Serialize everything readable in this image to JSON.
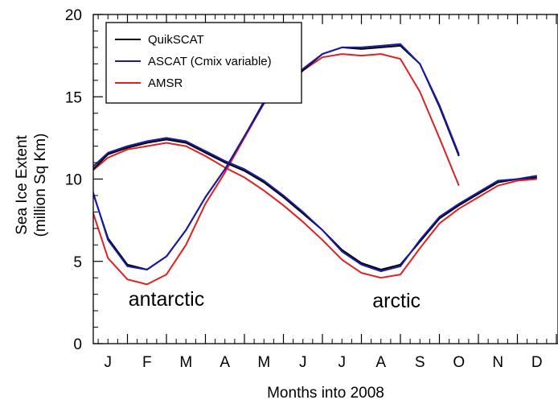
{
  "chart_data": {
    "type": "line",
    "title": "",
    "xlabel": "Months into 2008",
    "ylabel_lines": [
      "Sea Ice Extent",
      "(million Sq Km)"
    ],
    "ylim": [
      0,
      20
    ],
    "yticks": [
      0,
      5,
      10,
      15,
      20
    ],
    "xlim": [
      0,
      12
    ],
    "months": [
      "J",
      "F",
      "M",
      "A",
      "M",
      "J",
      "J",
      "A",
      "S",
      "O",
      "N",
      "D"
    ],
    "legend_position": "top-left",
    "grid": false,
    "annotations": [
      {
        "text": "antarctic",
        "x": 2.0,
        "y": 2.3
      },
      {
        "text": "arctic",
        "x": 7.9,
        "y": 2.2
      }
    ],
    "x": [
      0.0,
      0.5,
      1.0,
      1.5,
      2.0,
      2.5,
      3.0,
      3.5,
      4.0,
      4.5,
      5.0,
      5.5,
      6.0,
      6.5,
      7.0,
      7.5,
      8.0,
      8.5,
      9.0,
      9.5,
      10.0,
      10.5,
      11.0,
      11.5,
      12.0
    ],
    "series": [
      {
        "name": "QuikSCAT",
        "color": "#000000",
        "group": "antarctic",
        "values": [
          10.0,
          6.4,
          4.8,
          4.5,
          5.3,
          6.9,
          8.9,
          10.6,
          12.6,
          14.7,
          15.6,
          16.6,
          17.6,
          18.0,
          17.9,
          18.0,
          18.1,
          17.0,
          14.4,
          11.4,
          null,
          null,
          null,
          null,
          null
        ]
      },
      {
        "name": "",
        "color": "#000000",
        "group": "arctic",
        "values": [
          10.3,
          11.5,
          11.9,
          12.2,
          12.4,
          12.2,
          11.6,
          11.0,
          10.5,
          9.8,
          8.9,
          7.9,
          6.9,
          5.7,
          4.9,
          4.5,
          4.8,
          6.2,
          7.6,
          8.4,
          9.1,
          9.8,
          10.0,
          10.1,
          null
        ]
      },
      {
        "name": "ASCAT (Cmix variable)",
        "color": "#1a1aaa",
        "group": "antarctic",
        "values": [
          10.1,
          6.3,
          4.7,
          4.5,
          5.3,
          6.9,
          8.9,
          10.6,
          12.6,
          14.6,
          15.5,
          16.7,
          17.6,
          18.0,
          18.0,
          18.1,
          18.2,
          17.0,
          14.5,
          11.5,
          null,
          null,
          null,
          null,
          null
        ]
      },
      {
        "name": "",
        "color": "#1a1aaa",
        "group": "arctic",
        "values": [
          10.5,
          11.6,
          12.0,
          12.3,
          12.5,
          12.3,
          11.7,
          11.1,
          10.6,
          9.9,
          9.0,
          8.0,
          6.9,
          5.6,
          4.8,
          4.4,
          4.7,
          6.3,
          7.7,
          8.5,
          9.2,
          9.9,
          10.0,
          10.2,
          null
        ]
      },
      {
        "name": "AMSR",
        "color": "#e02020",
        "group": "antarctic",
        "values": [
          8.8,
          5.2,
          3.9,
          3.6,
          4.2,
          6.0,
          8.5,
          10.4,
          12.5,
          14.6,
          15.3,
          16.6,
          17.4,
          17.6,
          17.5,
          17.6,
          17.3,
          15.3,
          12.5,
          9.6,
          null,
          null,
          null,
          null,
          null
        ]
      },
      {
        "name": "",
        "color": "#e02020",
        "group": "arctic",
        "values": [
          10.3,
          11.3,
          11.8,
          12.0,
          12.2,
          12.0,
          11.4,
          10.7,
          10.1,
          9.3,
          8.4,
          7.4,
          6.3,
          5.1,
          4.3,
          4.0,
          4.2,
          5.8,
          7.3,
          8.2,
          8.9,
          9.6,
          9.9,
          10.0,
          null
        ]
      }
    ]
  }
}
